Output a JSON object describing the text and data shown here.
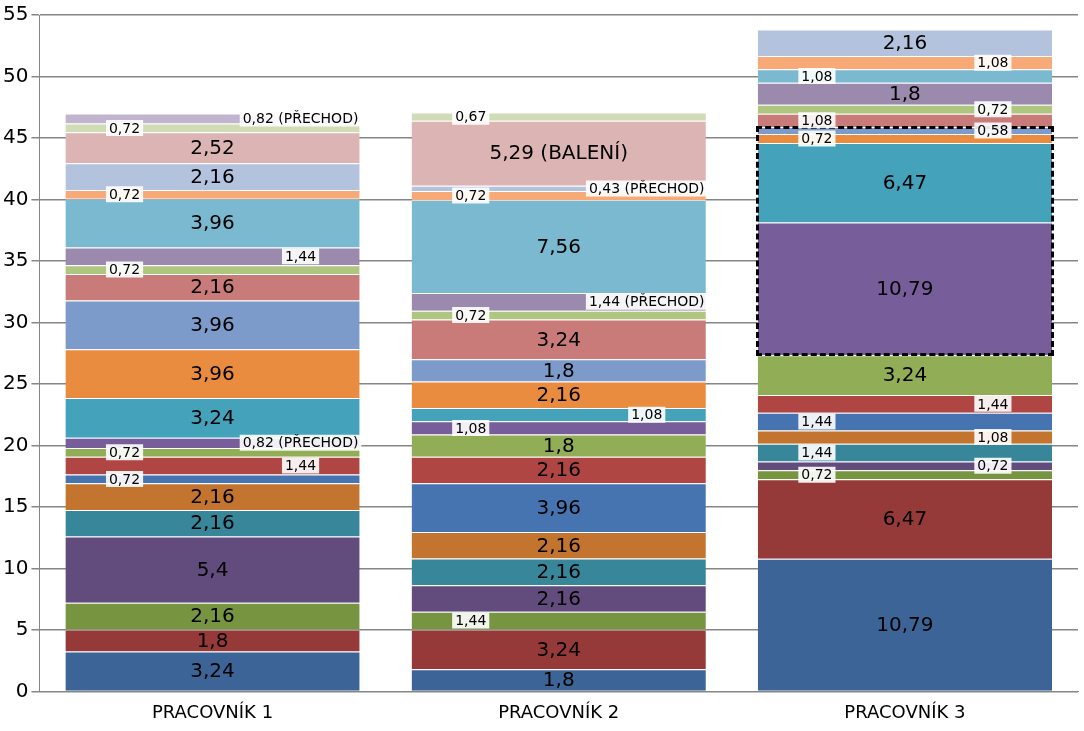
{
  "chart_data": {
    "type": "bar",
    "stacked": true,
    "categories": [
      "PRACOVNÍK 1",
      "PRACOVNÍK 2",
      "PRACOVNÍK 3"
    ],
    "ylim": [
      0,
      55
    ],
    "yticks": [
      0,
      5,
      10,
      15,
      20,
      25,
      30,
      35,
      40,
      45,
      50,
      55
    ],
    "grid": "y",
    "legend": false,
    "series": [
      {
        "color": "#3c6496",
        "values": [
          3.24,
          1.8,
          10.79
        ],
        "value_labels": [
          "3,24",
          "1,8",
          "10,79"
        ]
      },
      {
        "color": "#953a39",
        "values": [
          1.8,
          3.24,
          6.47
        ],
        "value_labels": [
          "1,8",
          "3,24",
          "6,47"
        ]
      },
      {
        "color": "#779540",
        "values": [
          2.16,
          1.44,
          0.72
        ],
        "value_labels": [
          "2,16",
          "1,44",
          "0,72"
        ]
      },
      {
        "color": "#624b7d",
        "values": [
          5.4,
          2.16,
          0.72
        ],
        "value_labels": [
          "5,4",
          "2,16",
          "0,72"
        ]
      },
      {
        "color": "#378699",
        "values": [
          2.16,
          2.16,
          1.44
        ],
        "value_labels": [
          "2,16",
          "2,16",
          "1,44"
        ]
      },
      {
        "color": "#c3742f",
        "values": [
          2.16,
          2.16,
          1.08
        ],
        "value_labels": [
          "2,16",
          "2,16",
          "1,08"
        ]
      },
      {
        "color": "#4674b0",
        "values": [
          0.72,
          3.96,
          1.44
        ],
        "value_labels": [
          "0,72",
          "3,96",
          "1,44"
        ]
      },
      {
        "color": "#b04643",
        "values": [
          1.44,
          2.16,
          1.44
        ],
        "value_labels": [
          "1,44",
          "2,16",
          "1,44"
        ]
      },
      {
        "color": "#91ad55",
        "values": [
          0.72,
          1.8,
          3.24
        ],
        "value_labels": [
          "0,72",
          "1,8",
          "3,24"
        ]
      },
      {
        "color": "#775d99",
        "values": [
          0.82,
          1.08,
          10.79
        ],
        "value_labels": [
          "0,82 (PŘECHOD)",
          "1,08",
          "10,79"
        ]
      },
      {
        "color": "#45a2bb",
        "values": [
          3.24,
          1.08,
          6.47
        ],
        "value_labels": [
          "3,24",
          "1,08",
          "6,47"
        ]
      },
      {
        "color": "#e98c3f",
        "values": [
          3.96,
          2.16,
          0.72
        ],
        "value_labels": [
          "3,96",
          "2,16",
          "0,72"
        ]
      },
      {
        "color": "#7c9bca",
        "values": [
          3.96,
          1.8,
          0.58
        ],
        "value_labels": [
          "3,96",
          "1,8",
          "0,58"
        ]
      },
      {
        "color": "#c97b7a",
        "values": [
          2.16,
          3.24,
          1.08
        ],
        "value_labels": [
          "2,16",
          "3,24",
          "1,08"
        ]
      },
      {
        "color": "#aec67f",
        "values": [
          0.72,
          0.72,
          0.72
        ],
        "value_labels": [
          "0,72",
          "0,72",
          "0,72"
        ]
      },
      {
        "color": "#9b8aae",
        "values": [
          1.44,
          1.44,
          1.8
        ],
        "value_labels": [
          "1,44",
          "1,44 (PŘECHOD)",
          "1,8"
        ]
      },
      {
        "color": "#7ab9cf",
        "values": [
          3.96,
          7.56,
          1.08
        ],
        "value_labels": [
          "3,96",
          "7,56",
          "1,08"
        ]
      },
      {
        "color": "#f7a978",
        "values": [
          0.72,
          0.72,
          1.08
        ],
        "value_labels": [
          "0,72",
          "0,72",
          "1,08"
        ]
      },
      {
        "color": "#b3c3de",
        "values": [
          2.16,
          0.43,
          2.16
        ],
        "value_labels": [
          "2,16",
          "0,43 (PŘECHOD)",
          "2,16"
        ]
      },
      {
        "color": "#ddb4b4",
        "values": [
          2.52,
          5.29,
          null
        ],
        "value_labels": [
          "2,52",
          "5,29 (BALENÍ)",
          null
        ]
      },
      {
        "color": "#cfdcb6",
        "values": [
          0.72,
          0.67,
          null
        ],
        "value_labels": [
          "0,72",
          "0,67",
          null
        ]
      },
      {
        "color": "#c1b4cf",
        "values": [
          0.82,
          null,
          null
        ],
        "value_labels": [
          "0,82 (PŘECHOD)",
          null,
          null
        ]
      }
    ]
  }
}
